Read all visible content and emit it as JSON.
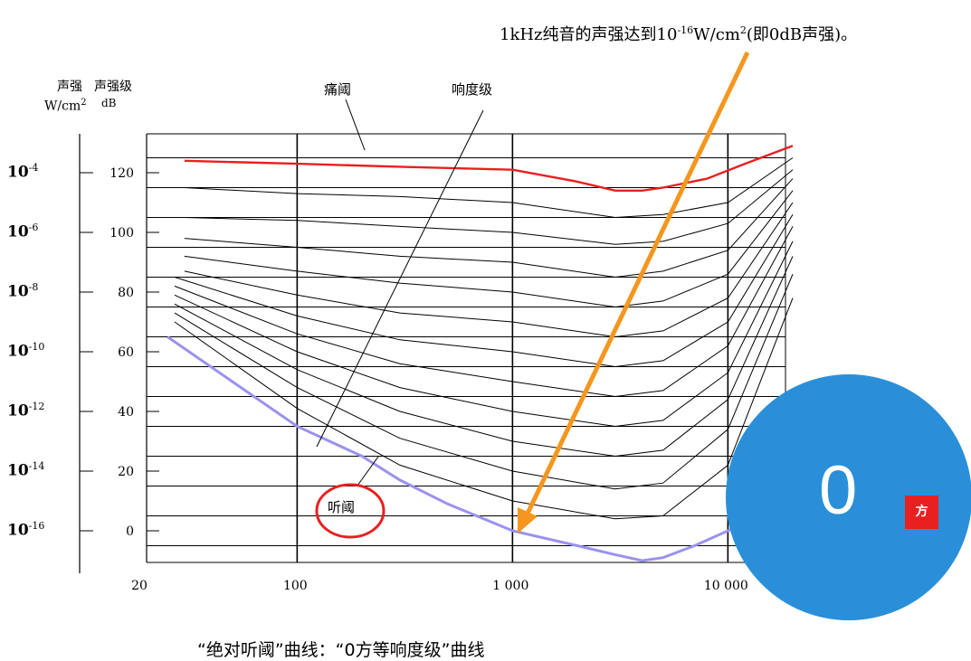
{
  "annotation_top": {
    "prefix": "1kHz纯音的声强达到10",
    "exp": "-16",
    "suffix": "W/cm",
    "exp2": "2",
    "tail": "(即0dB声强)。"
  },
  "axis_headers": {
    "intensity_title": "声强",
    "intensity_unit": "W/cm",
    "intensity_unit_exp": "2",
    "level_title": "声强级",
    "level_unit": "dB"
  },
  "intensity_labels": [
    {
      "base": "10",
      "exp": "-4"
    },
    {
      "base": "10",
      "exp": "-6"
    },
    {
      "base": "10",
      "exp": "-8"
    },
    {
      "base": "10",
      "exp": "-10"
    },
    {
      "base": "10",
      "exp": "-12"
    },
    {
      "base": "10",
      "exp": "-14"
    },
    {
      "base": "10",
      "exp": "-16"
    }
  ],
  "curve_labels": {
    "pain": "痛阈",
    "loudness": "响度级",
    "hearing": "听阈"
  },
  "caption": "“绝对听阈”曲线：“0方等响度级”曲线",
  "bubble": {
    "value": "0",
    "unit": "方",
    "color": "#2a8fd8",
    "unit_color": "#e82020"
  },
  "colors": {
    "pain": "#e82020",
    "hearing": "#9a92ee",
    "arrow": "#f5961e",
    "grid": "#000000",
    "highlight": "#e82020"
  },
  "chart_data": {
    "type": "line",
    "x_scale": "log",
    "xlim": [
      20,
      20000
    ],
    "ylim": [
      -10,
      130
    ],
    "x_ticks": [
      {
        "value": 20,
        "label": "20"
      },
      {
        "value": 100,
        "label": "100"
      },
      {
        "value": 1000,
        "label": "1 000"
      },
      {
        "value": 10000,
        "label": "10 000"
      }
    ],
    "y_ticks": [
      120,
      100,
      80,
      60,
      40,
      20,
      0
    ],
    "h_grid": [
      125,
      115,
      105,
      95,
      85,
      75,
      65,
      55,
      45,
      35,
      25,
      15,
      5,
      -5
    ],
    "v_grid": [
      100,
      1000,
      10000
    ],
    "grid": true,
    "pain_threshold": [
      [
        30,
        124
      ],
      [
        100,
        123
      ],
      [
        300,
        122
      ],
      [
        1000,
        121
      ],
      [
        2000,
        117
      ],
      [
        3000,
        114
      ],
      [
        4000,
        114
      ],
      [
        5000,
        115
      ],
      [
        8000,
        118
      ],
      [
        12000,
        123
      ],
      [
        20000,
        129
      ]
    ],
    "hearing_threshold": [
      [
        25,
        65
      ],
      [
        50,
        50
      ],
      [
        100,
        35
      ],
      [
        200,
        25
      ],
      [
        300,
        17
      ],
      [
        500,
        9
      ],
      [
        1000,
        0
      ],
      [
        2000,
        -5
      ],
      [
        3000,
        -8
      ],
      [
        4000,
        -10
      ],
      [
        5000,
        -9
      ],
      [
        7000,
        -5
      ],
      [
        10000,
        0
      ],
      [
        13000,
        4
      ]
    ],
    "equal_loudness": [
      [
        [
          30,
          115
        ],
        [
          100,
          113
        ],
        [
          300,
          112
        ],
        [
          1000,
          110
        ],
        [
          3000,
          105
        ],
        [
          5000,
          106
        ],
        [
          10000,
          110
        ],
        [
          20000,
          125
        ]
      ],
      [
        [
          30,
          105
        ],
        [
          100,
          104
        ],
        [
          300,
          102
        ],
        [
          1000,
          100
        ],
        [
          3000,
          96
        ],
        [
          5000,
          97
        ],
        [
          10000,
          103
        ],
        [
          20000,
          121
        ]
      ],
      [
        [
          30,
          98
        ],
        [
          100,
          95
        ],
        [
          300,
          92
        ],
        [
          1000,
          90
        ],
        [
          3000,
          85
        ],
        [
          5000,
          87
        ],
        [
          10000,
          94
        ],
        [
          20000,
          118
        ]
      ],
      [
        [
          30,
          92
        ],
        [
          100,
          87
        ],
        [
          300,
          83
        ],
        [
          1000,
          80
        ],
        [
          3000,
          75
        ],
        [
          5000,
          77
        ],
        [
          10000,
          86
        ],
        [
          20000,
          114
        ]
      ],
      [
        [
          30,
          87
        ],
        [
          100,
          79
        ],
        [
          300,
          73
        ],
        [
          1000,
          70
        ],
        [
          3000,
          65
        ],
        [
          5000,
          67
        ],
        [
          10000,
          78
        ],
        [
          20000,
          110
        ]
      ],
      [
        [
          27,
          85
        ],
        [
          100,
          72
        ],
        [
          300,
          64
        ],
        [
          1000,
          60
        ],
        [
          3000,
          55
        ],
        [
          5000,
          57
        ],
        [
          10000,
          70
        ],
        [
          20000,
          106
        ]
      ],
      [
        [
          27,
          82
        ],
        [
          100,
          66
        ],
        [
          300,
          56
        ],
        [
          1000,
          50
        ],
        [
          3000,
          45
        ],
        [
          5000,
          47
        ],
        [
          10000,
          62
        ],
        [
          20000,
          102
        ]
      ],
      [
        [
          27,
          79
        ],
        [
          100,
          60
        ],
        [
          300,
          48
        ],
        [
          1000,
          40
        ],
        [
          3000,
          35
        ],
        [
          5000,
          37
        ],
        [
          10000,
          53
        ],
        [
          20000,
          97
        ]
      ],
      [
        [
          27,
          76
        ],
        [
          100,
          54
        ],
        [
          300,
          40
        ],
        [
          1000,
          30
        ],
        [
          3000,
          25
        ],
        [
          5000,
          27
        ],
        [
          10000,
          44
        ],
        [
          20000,
          92
        ]
      ],
      [
        [
          27,
          73
        ],
        [
          100,
          48
        ],
        [
          300,
          31
        ],
        [
          1000,
          20
        ],
        [
          3000,
          14
        ],
        [
          5000,
          16
        ],
        [
          10000,
          34
        ],
        [
          20000,
          86
        ]
      ],
      [
        [
          27,
          70
        ],
        [
          100,
          41
        ],
        [
          300,
          22
        ],
        [
          1000,
          10
        ],
        [
          3000,
          4
        ],
        [
          5000,
          5
        ],
        [
          10000,
          22
        ],
        [
          20000,
          78
        ]
      ]
    ]
  }
}
